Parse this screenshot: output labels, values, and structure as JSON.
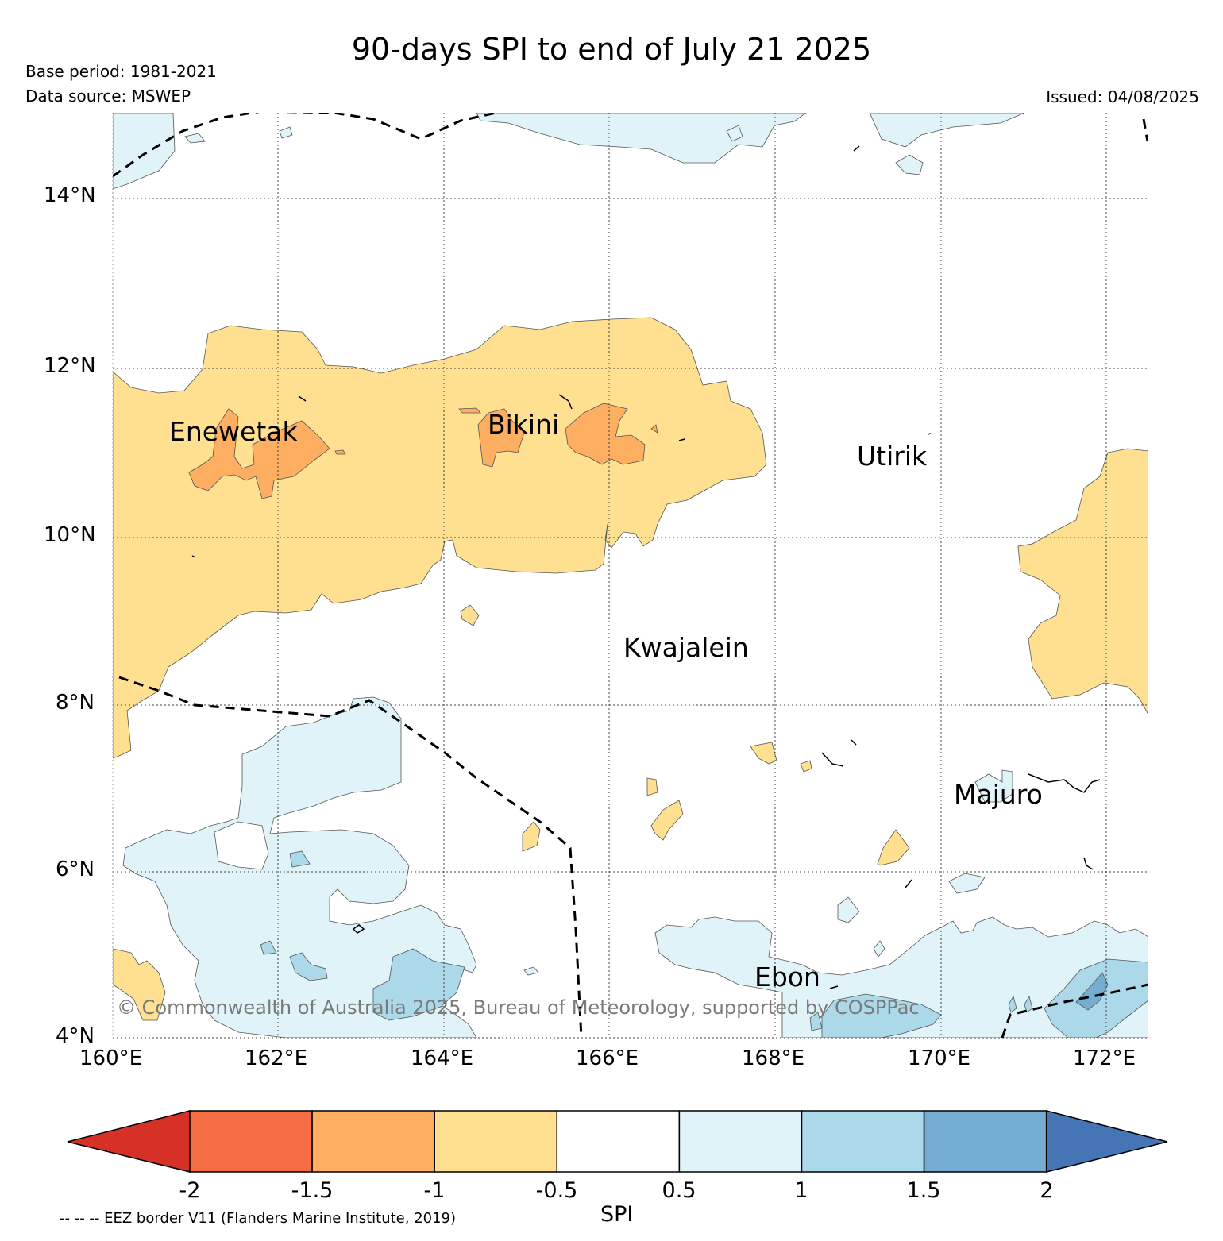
{
  "title": "90-days SPI to end of July 21 2025",
  "base_period": "Base period: 1981-2021",
  "data_source": "Data source: MSWEP",
  "issued": "Issued: 04/08/2025",
  "copyright": "© Commonwealth of Australia 2025, Bureau of Meteorology, supported by COSPPac",
  "eez_note": "-- -- -- EEZ border V11 (Flanders Marine Institute, 2019)",
  "lat_ticks": [
    "14°N",
    "12°N",
    "10°N",
    "8°N",
    "6°N",
    "4°N"
  ],
  "lon_ticks": [
    "160°E",
    "162°E",
    "164°E",
    "166°E",
    "168°E",
    "170°E",
    "172°E"
  ],
  "places": [
    "Enewetak",
    "Bikini",
    "Utirik",
    "Kwajalein",
    "Majuro",
    "Ebon"
  ],
  "colorbar": {
    "label": "SPI",
    "ticks": [
      "-2",
      "-1.5",
      "-1",
      "-0.5",
      "0.5",
      "1",
      "1.5",
      "2"
    ],
    "colors": [
      "#d73027",
      "#f46d43",
      "#fdae61",
      "#fee090",
      "#ffffff",
      "#e0f3f8",
      "#abd9e9",
      "#74add1",
      "#4575b4"
    ]
  },
  "legend_colors": {
    "dry_moderate": "#fee090",
    "dry_strong": "#fdae61",
    "wet_moderate": "#e0f3f8",
    "wet_strong": "#abd9e9",
    "wet_very": "#74add1"
  }
}
